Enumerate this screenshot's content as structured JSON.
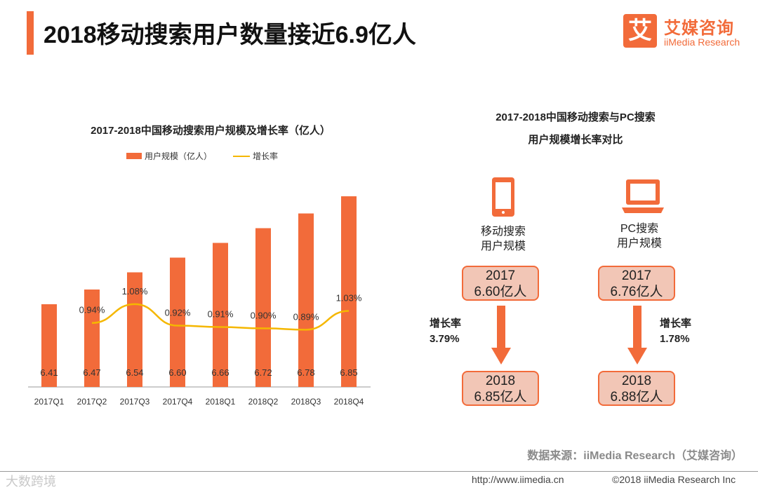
{
  "page": {
    "title": "2018移动搜索用户数量接近6.9亿人"
  },
  "logo": {
    "mark": "艾",
    "name_cn": "艾媒咨询",
    "name_en": "iiMedia Research"
  },
  "colors": {
    "accent": "#f26b3a",
    "line": "#f5b700",
    "box_fill": "#f2c6b6"
  },
  "chart_data": {
    "type": "bar",
    "title": "2017-2018中国移动搜索用户规模及增长率（亿人）",
    "categories": [
      "2017Q1",
      "2017Q2",
      "2017Q3",
      "2017Q4",
      "2018Q1",
      "2018Q2",
      "2018Q3",
      "2018Q4"
    ],
    "series": [
      {
        "name": "用户规模（亿人）",
        "type": "bar",
        "values": [
          6.41,
          6.47,
          6.54,
          6.6,
          6.66,
          6.72,
          6.78,
          6.85
        ]
      },
      {
        "name": "增长率",
        "type": "line",
        "values": [
          null,
          0.94,
          1.08,
          0.92,
          0.91,
          0.9,
          0.89,
          1.03
        ],
        "labels": [
          "",
          "0.94%",
          "1.08%",
          "0.92%",
          "0.91%",
          "0.90%",
          "0.89%",
          "1.03%"
        ]
      }
    ],
    "bar_labels": [
      "6.41",
      "6.47",
      "6.54",
      "6.60",
      "6.66",
      "6.72",
      "6.78",
      "6.85"
    ],
    "legend_position": "top",
    "grid": false
  },
  "comparison": {
    "title_line1": "2017-2018中国移动搜索与PC搜索",
    "title_line2": "用户规模增长率对比",
    "mobile": {
      "icon": "smartphone-icon",
      "label_line1": "移动搜索",
      "label_line2": "用户规模",
      "year_2017": "2017",
      "value_2017": "6.60亿人",
      "growth_label": "增长率",
      "growth_value": "3.79%",
      "year_2018": "2018",
      "value_2018": "6.85亿人"
    },
    "pc": {
      "icon": "laptop-icon",
      "label_line1": "PC搜索",
      "label_line2": "用户规模",
      "year_2017": "2017",
      "value_2017": "6.76亿人",
      "growth_label": "增长率",
      "growth_value": "1.78%",
      "year_2018": "2018",
      "value_2018": "6.88亿人"
    }
  },
  "footer": {
    "source": "数据来源：iiMedia Research（艾媒咨询）",
    "watermark": "大数跨境",
    "url": "http://www.iimedia.cn",
    "copyright": "©2018  iiMedia Research  Inc"
  }
}
